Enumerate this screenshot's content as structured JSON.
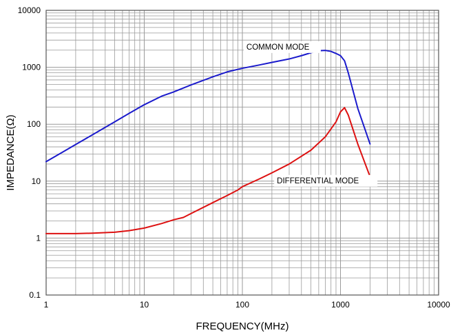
{
  "chart_data": {
    "type": "line",
    "title": "",
    "xlabel": "FREQUENCY(MHz)",
    "ylabel": "IMPEDANCE(Ω)",
    "x_scale": "log",
    "y_scale": "log",
    "xlim": [
      1,
      10000
    ],
    "ylim": [
      0.1,
      10000
    ],
    "x_ticks": [
      "1",
      "10",
      "100",
      "1000",
      "10000"
    ],
    "y_ticks": [
      "0.1",
      "1",
      "10",
      "100",
      "1000",
      "10000"
    ],
    "grid": true,
    "colors": {
      "common": "#1a1acc",
      "differential": "#dd1111",
      "grid": "#9a9a9a",
      "axis": "#555555"
    },
    "series": [
      {
        "name": "COMMON MODE",
        "x": [
          1,
          1.5,
          2,
          3,
          5,
          7,
          10,
          15,
          20,
          30,
          50,
          70,
          100,
          150,
          200,
          300,
          400,
          500,
          600,
          700,
          800,
          900,
          1000,
          1100,
          1200,
          1500,
          2000
        ],
        "y": [
          22,
          33,
          44,
          66,
          110,
          155,
          220,
          310,
          370,
          490,
          680,
          830,
          960,
          1100,
          1220,
          1400,
          1600,
          1800,
          1950,
          1980,
          1900,
          1750,
          1600,
          1300,
          800,
          190,
          45
        ]
      },
      {
        "name": "DIFFERENTIAL MODE",
        "x": [
          1,
          2,
          3,
          5,
          7,
          10,
          15,
          20,
          25,
          30,
          50,
          70,
          90,
          100,
          150,
          200,
          300,
          500,
          700,
          900,
          1000,
          1100,
          1200,
          1500,
          2000
        ],
        "y": [
          1.2,
          1.2,
          1.22,
          1.27,
          1.35,
          1.5,
          1.8,
          2.1,
          2.3,
          2.7,
          4.2,
          5.6,
          7.0,
          8.0,
          11,
          14,
          20,
          35,
          60,
          110,
          165,
          195,
          145,
          45,
          12
        ]
      }
    ],
    "annotations": [
      "COMMON MODE",
      "DIFFERENTIAL MODE"
    ]
  }
}
